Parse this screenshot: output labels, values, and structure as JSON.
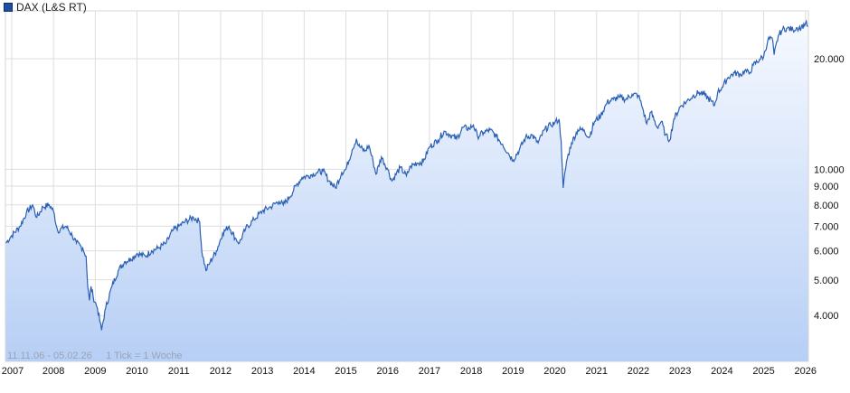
{
  "legend": {
    "label": "DAX (L&S RT)",
    "color": "#1f4e9e"
  },
  "footer": {
    "range": "11.11.06 - 05.02.26",
    "tick": "1 Tick = 1 Woche"
  },
  "chart_data": {
    "type": "area",
    "title": "",
    "xlabel": "",
    "ylabel": "",
    "yscale": "log",
    "ylim": [
      3000,
      27000
    ],
    "grid": true,
    "legend_position": "top-left",
    "line_color": "#2a5fb3",
    "fill_top_color": "#f6f9ff",
    "fill_bottom_color": "#b7cff5",
    "x_ticks": [
      "2007",
      "2008",
      "2009",
      "2010",
      "2011",
      "2012",
      "2013",
      "2014",
      "2015",
      "2016",
      "2017",
      "2018",
      "2019",
      "2020",
      "2021",
      "2022",
      "2023",
      "2024",
      "2025",
      "2026"
    ],
    "y_ticks": [
      {
        "value": 4000,
        "label": "4.000"
      },
      {
        "value": 5000,
        "label": "5.000"
      },
      {
        "value": 6000,
        "label": "6.000"
      },
      {
        "value": 7000,
        "label": "7.000"
      },
      {
        "value": 8000,
        "label": "8.000"
      },
      {
        "value": 9000,
        "label": "9.000"
      },
      {
        "value": 10000,
        "label": "10.000"
      },
      {
        "value": 20000,
        "label": "20.000"
      }
    ],
    "series": [
      {
        "points": [
          [
            2006.86,
            6300
          ],
          [
            2007.0,
            6600
          ],
          [
            2007.2,
            7000
          ],
          [
            2007.35,
            7600
          ],
          [
            2007.5,
            8000
          ],
          [
            2007.6,
            7400
          ],
          [
            2007.75,
            7900
          ],
          [
            2007.9,
            8000
          ],
          [
            2008.0,
            7700
          ],
          [
            2008.1,
            6800
          ],
          [
            2008.3,
            7000
          ],
          [
            2008.45,
            6600
          ],
          [
            2008.55,
            6300
          ],
          [
            2008.7,
            6100
          ],
          [
            2008.78,
            5800
          ],
          [
            2008.82,
            4800
          ],
          [
            2008.86,
            4400
          ],
          [
            2008.9,
            4800
          ],
          [
            2008.95,
            4500
          ],
          [
            2009.05,
            4200
          ],
          [
            2009.15,
            3650
          ],
          [
            2009.25,
            4200
          ],
          [
            2009.4,
            4800
          ],
          [
            2009.55,
            5300
          ],
          [
            2009.7,
            5600
          ],
          [
            2009.85,
            5700
          ],
          [
            2010.0,
            5900
          ],
          [
            2010.2,
            5800
          ],
          [
            2010.35,
            6000
          ],
          [
            2010.5,
            6100
          ],
          [
            2010.7,
            6300
          ],
          [
            2010.85,
            6800
          ],
          [
            2011.0,
            7000
          ],
          [
            2011.15,
            7200
          ],
          [
            2011.35,
            7400
          ],
          [
            2011.5,
            7200
          ],
          [
            2011.55,
            6000
          ],
          [
            2011.65,
            5300
          ],
          [
            2011.75,
            5600
          ],
          [
            2011.9,
            6000
          ],
          [
            2012.05,
            6700
          ],
          [
            2012.2,
            7000
          ],
          [
            2012.35,
            6500
          ],
          [
            2012.45,
            6300
          ],
          [
            2012.6,
            6900
          ],
          [
            2012.8,
            7300
          ],
          [
            2013.0,
            7700
          ],
          [
            2013.2,
            7900
          ],
          [
            2013.4,
            8200
          ],
          [
            2013.5,
            8000
          ],
          [
            2013.65,
            8400
          ],
          [
            2013.8,
            9000
          ],
          [
            2013.95,
            9500
          ],
          [
            2014.1,
            9600
          ],
          [
            2014.3,
            9800
          ],
          [
            2014.45,
            9900
          ],
          [
            2014.6,
            9300
          ],
          [
            2014.75,
            8900
          ],
          [
            2014.9,
            9800
          ],
          [
            2015.0,
            10000
          ],
          [
            2015.15,
            11300
          ],
          [
            2015.25,
            12100
          ],
          [
            2015.3,
            11600
          ],
          [
            2015.45,
            11200
          ],
          [
            2015.55,
            11600
          ],
          [
            2015.65,
            10500
          ],
          [
            2015.72,
            9700
          ],
          [
            2015.85,
            10800
          ],
          [
            2016.0,
            10000
          ],
          [
            2016.1,
            9300
          ],
          [
            2016.3,
            10100
          ],
          [
            2016.45,
            9600
          ],
          [
            2016.55,
            10200
          ],
          [
            2016.7,
            10400
          ],
          [
            2016.85,
            10500
          ],
          [
            2017.0,
            11500
          ],
          [
            2017.2,
            12000
          ],
          [
            2017.35,
            12700
          ],
          [
            2017.5,
            12400
          ],
          [
            2017.65,
            12100
          ],
          [
            2017.8,
            13000
          ],
          [
            2017.95,
            12900
          ],
          [
            2018.05,
            13200
          ],
          [
            2018.15,
            12300
          ],
          [
            2018.3,
            12600
          ],
          [
            2018.45,
            12800
          ],
          [
            2018.6,
            12300
          ],
          [
            2018.75,
            11700
          ],
          [
            2018.9,
            11000
          ],
          [
            2019.0,
            10600
          ],
          [
            2019.15,
            11300
          ],
          [
            2019.3,
            12200
          ],
          [
            2019.45,
            12400
          ],
          [
            2019.6,
            11800
          ],
          [
            2019.75,
            12800
          ],
          [
            2019.9,
            13200
          ],
          [
            2020.0,
            13400
          ],
          [
            2020.1,
            13700
          ],
          [
            2020.15,
            12000
          ],
          [
            2020.2,
            8900
          ],
          [
            2020.28,
            10500
          ],
          [
            2020.4,
            11800
          ],
          [
            2020.55,
            12800
          ],
          [
            2020.7,
            12800
          ],
          [
            2020.82,
            12200
          ],
          [
            2020.95,
            13500
          ],
          [
            2021.1,
            14000
          ],
          [
            2021.25,
            15200
          ],
          [
            2021.4,
            15500
          ],
          [
            2021.55,
            15700
          ],
          [
            2021.7,
            15500
          ],
          [
            2021.85,
            16000
          ],
          [
            2022.0,
            15900
          ],
          [
            2022.1,
            14700
          ],
          [
            2022.2,
            13300
          ],
          [
            2022.3,
            14300
          ],
          [
            2022.45,
            13000
          ],
          [
            2022.55,
            13500
          ],
          [
            2022.65,
            12400
          ],
          [
            2022.75,
            12000
          ],
          [
            2022.85,
            13700
          ],
          [
            2023.0,
            14800
          ],
          [
            2023.15,
            15300
          ],
          [
            2023.3,
            15800
          ],
          [
            2023.45,
            16200
          ],
          [
            2023.6,
            15900
          ],
          [
            2023.75,
            15300
          ],
          [
            2023.82,
            14900
          ],
          [
            2023.9,
            16200
          ],
          [
            2024.0,
            16700
          ],
          [
            2024.15,
            17800
          ],
          [
            2024.3,
            18300
          ],
          [
            2024.45,
            18100
          ],
          [
            2024.55,
            18600
          ],
          [
            2024.65,
            18200
          ],
          [
            2024.75,
            19200
          ],
          [
            2024.9,
            19900
          ],
          [
            2025.0,
            20300
          ],
          [
            2025.1,
            22500
          ],
          [
            2025.2,
            22800
          ],
          [
            2025.25,
            20500
          ],
          [
            2025.35,
            23100
          ],
          [
            2025.45,
            24000
          ],
          [
            2025.55,
            24200
          ],
          [
            2025.7,
            24000
          ],
          [
            2025.8,
            24300
          ],
          [
            2025.9,
            24300
          ],
          [
            2026.0,
            25000
          ],
          [
            2026.06,
            24500
          ]
        ]
      }
    ]
  }
}
